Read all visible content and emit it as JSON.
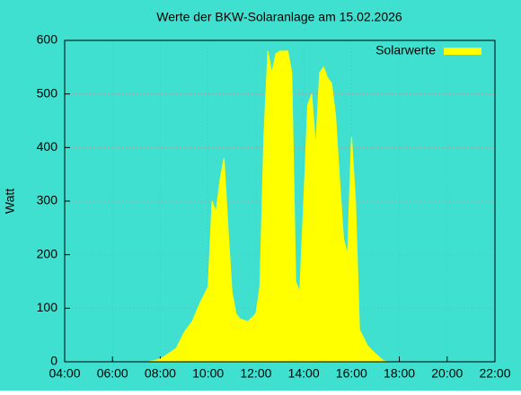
{
  "chart_data": {
    "type": "area",
    "title": "Werte der BKW-Solaranlage am 15.02.2026",
    "y_label": "Watt",
    "x": [
      "07:30",
      "08:00",
      "08:20",
      "08:40",
      "09:00",
      "09:20",
      "09:40",
      "10:00",
      "10:10",
      "10:20",
      "10:30",
      "10:40",
      "10:50",
      "11:00",
      "11:10",
      "11:20",
      "11:40",
      "12:00",
      "12:10",
      "12:20",
      "12:30",
      "12:40",
      "12:50",
      "13:00",
      "13:10",
      "13:20",
      "13:30",
      "13:40",
      "13:50",
      "14:00",
      "14:10",
      "14:20",
      "14:30",
      "14:40",
      "14:50",
      "15:00",
      "15:10",
      "15:20",
      "15:30",
      "15:40",
      "15:50",
      "16:00",
      "16:10",
      "16:20",
      "16:30",
      "16:40",
      "17:00",
      "17:20",
      "17:30"
    ],
    "series": [
      {
        "name": "Solarwerte",
        "color": "#ffff00",
        "values": [
          0,
          5,
          15,
          25,
          55,
          75,
          110,
          140,
          300,
          280,
          340,
          380,
          250,
          130,
          90,
          80,
          75,
          90,
          140,
          420,
          580,
          540,
          575,
          580,
          580,
          580,
          540,
          150,
          130,
          300,
          480,
          500,
          400,
          540,
          550,
          530,
          520,
          460,
          340,
          230,
          200,
          420,
          300,
          60,
          45,
          30,
          15,
          2,
          0
        ]
      }
    ],
    "xlim": [
      "04:00",
      "22:00"
    ],
    "xticks": [
      "04:00",
      "06:00",
      "08:00",
      "10:00",
      "12:00",
      "14:00",
      "16:00",
      "18:00",
      "20:00",
      "22:00"
    ],
    "ylim": [
      0,
      600
    ],
    "yticks": [
      0,
      100,
      200,
      300,
      400,
      500,
      600
    ],
    "grid": true,
    "legend": "top-right",
    "background": "#40e0d0"
  }
}
